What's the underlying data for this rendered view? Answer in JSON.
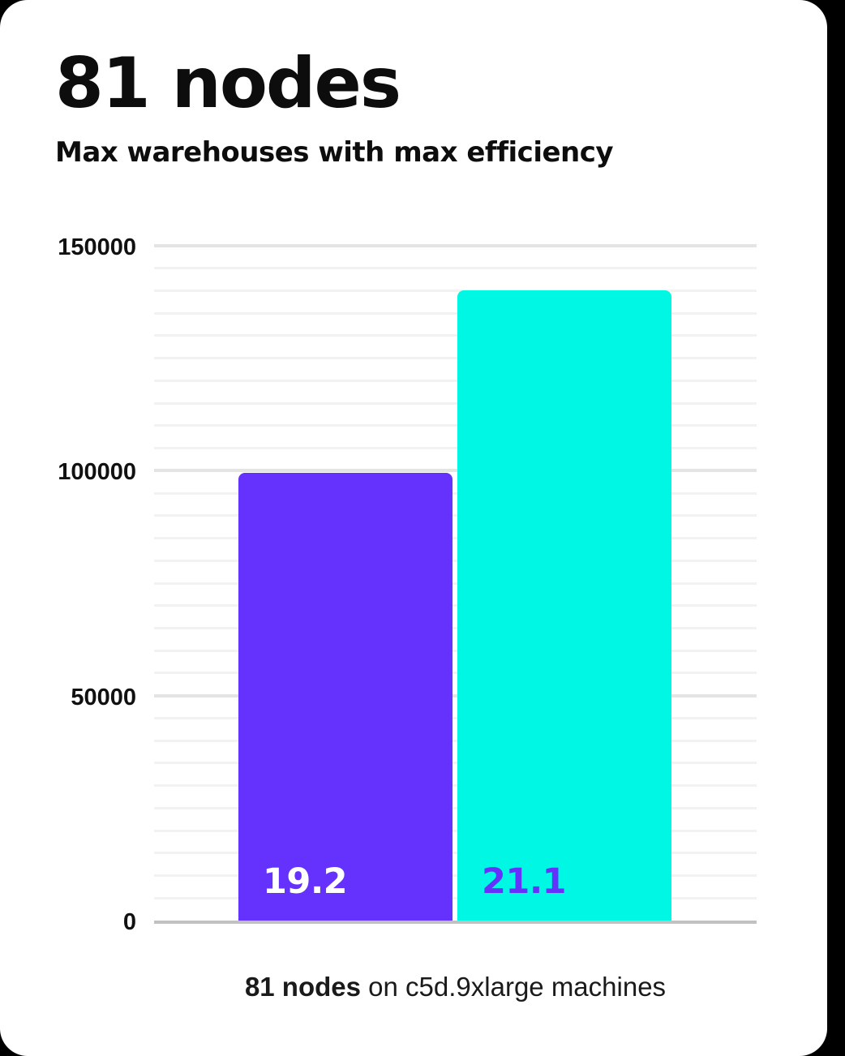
{
  "page": {
    "background_color": "#000000",
    "card_color": "#ffffff"
  },
  "header": {
    "title": "81 nodes",
    "subtitle": "Max warehouses with max efficiency"
  },
  "chart_data": {
    "type": "bar",
    "title": "81 nodes",
    "subtitle": "Max warehouses with max efficiency",
    "xlabel": "",
    "ylabel": "",
    "ylim": [
      0,
      150000
    ],
    "yticks": [
      {
        "value": 0,
        "label": "0"
      },
      {
        "value": 50000,
        "label": "50000"
      },
      {
        "value": 100000,
        "label": "100000"
      },
      {
        "value": 150000,
        "label": "150000"
      }
    ],
    "minor_grid_step": 5000,
    "grid": true,
    "legend_position": "none",
    "series": [
      {
        "data_label": "19.2",
        "value": 99500,
        "bar_color": "#6432fc",
        "label_color": "#ffffff"
      },
      {
        "data_label": "21.1",
        "value": 140000,
        "bar_color": "#00f7e3",
        "label_color": "#6432fc"
      }
    ],
    "colors": {
      "grid_minor": "#f2f2f2",
      "grid_major": "#e4e4e4",
      "baseline": "#c1c1c1",
      "tick_text": "#111111"
    }
  },
  "caption": {
    "bold": "81 nodes",
    "rest": " on c5d.9xlarge machines"
  }
}
